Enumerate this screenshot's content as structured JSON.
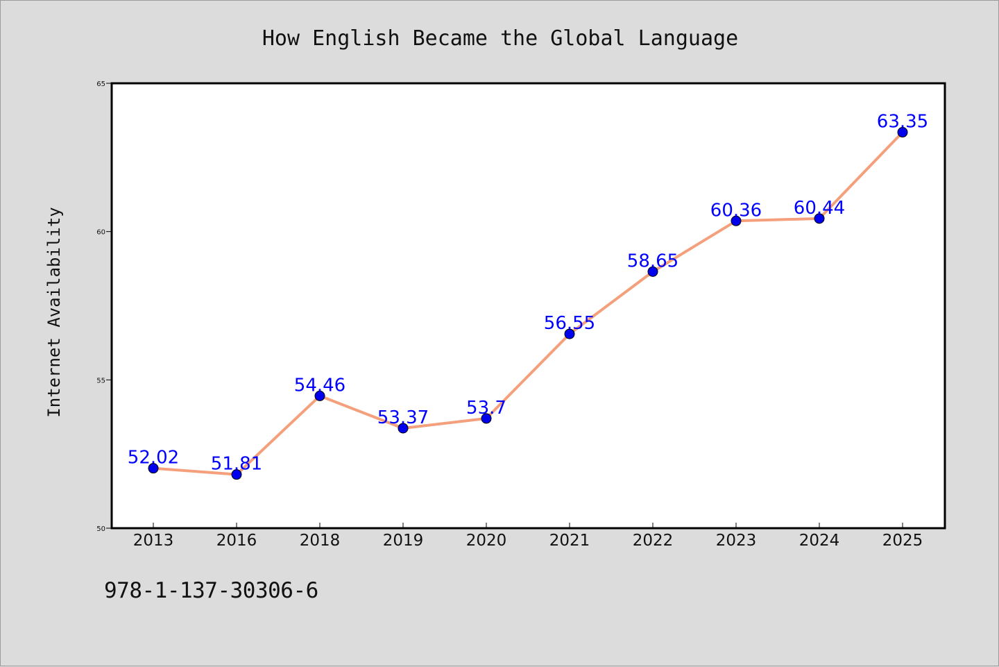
{
  "chart_data": {
    "type": "line",
    "title": "How English Became the Global Language",
    "xlabel": "",
    "ylabel": "Internet Availability",
    "categories": [
      "2013",
      "2016",
      "2018",
      "2019",
      "2020",
      "2021",
      "2022",
      "2023",
      "2024",
      "2025"
    ],
    "series": [
      {
        "values": [
          52.02,
          51.81,
          54.46,
          53.37,
          53.7,
          56.55,
          58.65,
          60.36,
          60.44,
          63.35
        ],
        "data_labels": [
          "52.02",
          "51.81",
          "54.46",
          "53.37",
          "53.7",
          "56.55",
          "58.65",
          "60.36",
          "60.44",
          "63.35"
        ]
      }
    ],
    "ylim": [
      50,
      65
    ],
    "yticks": [
      "50",
      "55",
      "60",
      "65"
    ],
    "grid": false,
    "colors": {
      "line": "#f4a07c",
      "marker": "#0000ee",
      "label": "#0000ff",
      "background": "#dcdcdc",
      "plot_bg": "#ffffff"
    }
  },
  "footer": {
    "isbn": "978-1-137-30306-6"
  }
}
